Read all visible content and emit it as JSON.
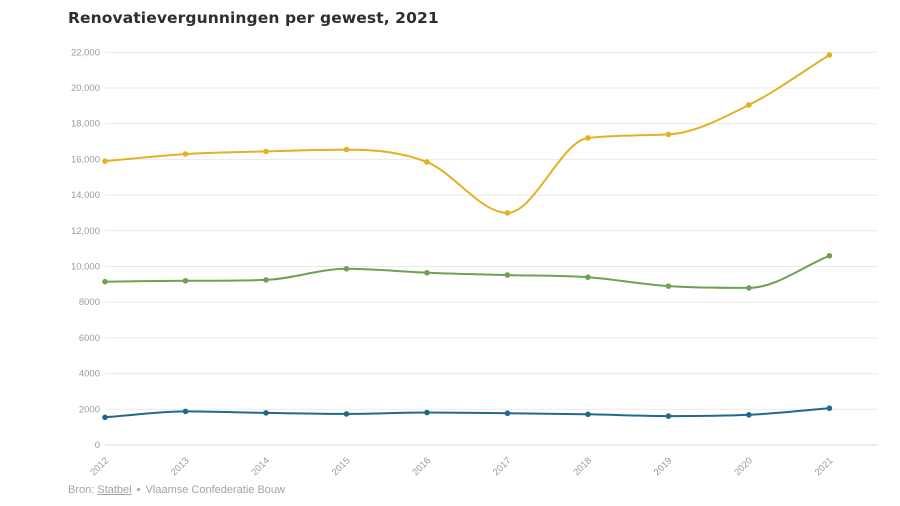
{
  "title": "Renovatievergunningen per gewest, 2021",
  "footer": {
    "prefix": "Bron: ",
    "source_link": "Statbel",
    "separator": " • ",
    "source_secondary": "Vlaamse Confederatie Bouw"
  },
  "colors": {
    "yellow_series": "#e3b122",
    "green_series": "#6fa153",
    "blue_series": "#20698c",
    "gridline": "#e9e9e9",
    "baseline": "#d9d9d9",
    "axis_text": "#9b9b9b",
    "title_text": "#2e2e2e",
    "footer_text": "#a3a3a3"
  },
  "chart_data": {
    "type": "line",
    "title": "Renovatievergunningen per gewest, 2021",
    "x": [
      2012,
      2013,
      2014,
      2015,
      2016,
      2017,
      2018,
      2019,
      2020,
      2021
    ],
    "x_tick_labels": [
      "2012",
      "2013",
      "2014",
      "2015",
      "2016",
      "2017",
      "2018",
      "2019",
      "2020",
      "2021"
    ],
    "series": [
      {
        "name": "yellow-line",
        "color": "#e3b122",
        "values": [
          15900,
          16300,
          16450,
          16550,
          15850,
          13000,
          17200,
          17400,
          19050,
          21850
        ]
      },
      {
        "name": "green-line",
        "color": "#6fa153",
        "values": [
          9150,
          9200,
          9250,
          9870,
          9650,
          9520,
          9400,
          8900,
          8800,
          10600
        ]
      },
      {
        "name": "blue-line",
        "color": "#20698c",
        "values": [
          1550,
          1880,
          1800,
          1740,
          1820,
          1780,
          1720,
          1620,
          1690,
          2060
        ]
      }
    ],
    "xlabel": "",
    "ylabel": "",
    "ylim": [
      0,
      22000
    ],
    "ytick_step": 2000,
    "ytick_labels": [
      "0",
      "2000",
      "4000",
      "6000",
      "8000",
      "10,000",
      "12,000",
      "14,000",
      "16,000",
      "18,000",
      "20,000",
      "22,000"
    ],
    "grid": true,
    "legend": false,
    "x_labels_rotated_degrees": 45,
    "curve": "smooth"
  }
}
